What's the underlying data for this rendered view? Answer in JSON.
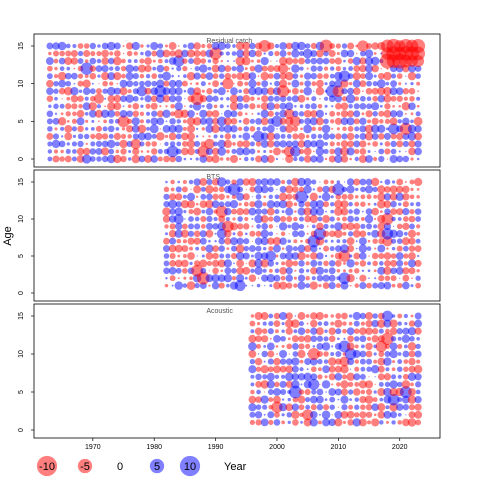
{
  "chart_data": {
    "type": "scatter",
    "subtype": "bubble-residual-plot",
    "ylabel": "Age",
    "xlabel": "Year",
    "ylim": [
      0,
      15
    ],
    "xlim": [
      1961,
      2025
    ],
    "xticks": [
      1970,
      1980,
      1990,
      2000,
      2010,
      2020
    ],
    "yticks": [
      0,
      5,
      10,
      15
    ],
    "grid": false,
    "legend": {
      "placement": "bottom",
      "entries": [
        {
          "label": "-10",
          "value": -10
        },
        {
          "label": "-5",
          "value": -5
        },
        {
          "label": "0",
          "value": 0
        },
        {
          "label": "5",
          "value": 5
        },
        {
          "label": "10",
          "value": 10
        }
      ]
    },
    "colors": {
      "negative": "#FF0000",
      "positive": "#0000FF",
      "opacity": 0.5
    },
    "panels": [
      {
        "title": "Residual catch",
        "year_start": 1963,
        "year_end": 2023,
        "ages": [
          0,
          15
        ]
      },
      {
        "title": "BTS",
        "year_start": 1982,
        "year_end": 2023,
        "ages": [
          1,
          15
        ]
      },
      {
        "title": "Acoustic",
        "year_start": 1996,
        "year_end": 2023,
        "ages": [
          1,
          15
        ]
      }
    ]
  }
}
